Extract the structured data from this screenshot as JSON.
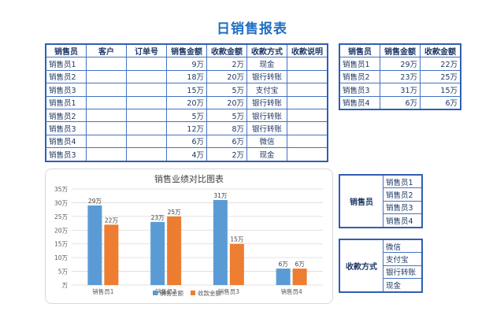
{
  "title": "日销售报表",
  "main_table": {
    "headers": [
      "销售员",
      "客户",
      "订单号",
      "销售金额",
      "收款金额",
      "收款方式",
      "收款说明"
    ],
    "rows": [
      [
        "销售员1",
        "",
        "",
        "9万",
        "2万",
        "现金",
        ""
      ],
      [
        "销售员2",
        "",
        "",
        "18万",
        "20万",
        "银行转账",
        ""
      ],
      [
        "销售员3",
        "",
        "",
        "15万",
        "5万",
        "支付宝",
        ""
      ],
      [
        "销售员1",
        "",
        "",
        "20万",
        "20万",
        "银行转账",
        ""
      ],
      [
        "销售员2",
        "",
        "",
        "5万",
        "5万",
        "银行转账",
        ""
      ],
      [
        "销售员3",
        "",
        "",
        "12万",
        "8万",
        "银行转账",
        ""
      ],
      [
        "销售员4",
        "",
        "",
        "6万",
        "6万",
        "微信",
        ""
      ],
      [
        "销售员3",
        "",
        "",
        "4万",
        "2万",
        "现金",
        ""
      ]
    ]
  },
  "summary_table": {
    "headers": [
      "销售员",
      "销售金额",
      "收款金额"
    ],
    "rows": [
      [
        "销售员1",
        "29万",
        "22万"
      ],
      [
        "销售员2",
        "23万",
        "25万"
      ],
      [
        "销售员3",
        "31万",
        "15万"
      ],
      [
        "销售员4",
        "6万",
        "6万"
      ]
    ]
  },
  "seller_list": {
    "label": "销售员",
    "items": [
      "销售员1",
      "销售员2",
      "销售员3",
      "销售员4"
    ]
  },
  "pay_list": {
    "label": "收款方式",
    "items": [
      "微信",
      "支付宝",
      "银行转账",
      "现金"
    ]
  },
  "colors": {
    "sales": "#5b9bd5",
    "received": "#ed7d31",
    "accent": "#1f6fc5",
    "border": "#4472c4"
  },
  "chart_data": {
    "type": "bar",
    "title": "销售业绩对比图表",
    "categories": [
      "销售员1",
      "销售员2",
      "销售员3",
      "销售员4"
    ],
    "series": [
      {
        "name": "销售金额",
        "values": [
          29,
          23,
          31,
          6
        ],
        "labels": [
          "29万",
          "23万",
          "31万",
          "6万"
        ]
      },
      {
        "name": "收款金额",
        "values": [
          22,
          25,
          15,
          6
        ],
        "labels": [
          "22万",
          "25万",
          "15万",
          "6万"
        ]
      }
    ],
    "ylim": [
      0,
      35
    ],
    "yticks": [
      "万",
      "5万",
      "10万",
      "15万",
      "20万",
      "25万",
      "30万",
      "35万"
    ],
    "grid": true,
    "legend": "bottom"
  }
}
